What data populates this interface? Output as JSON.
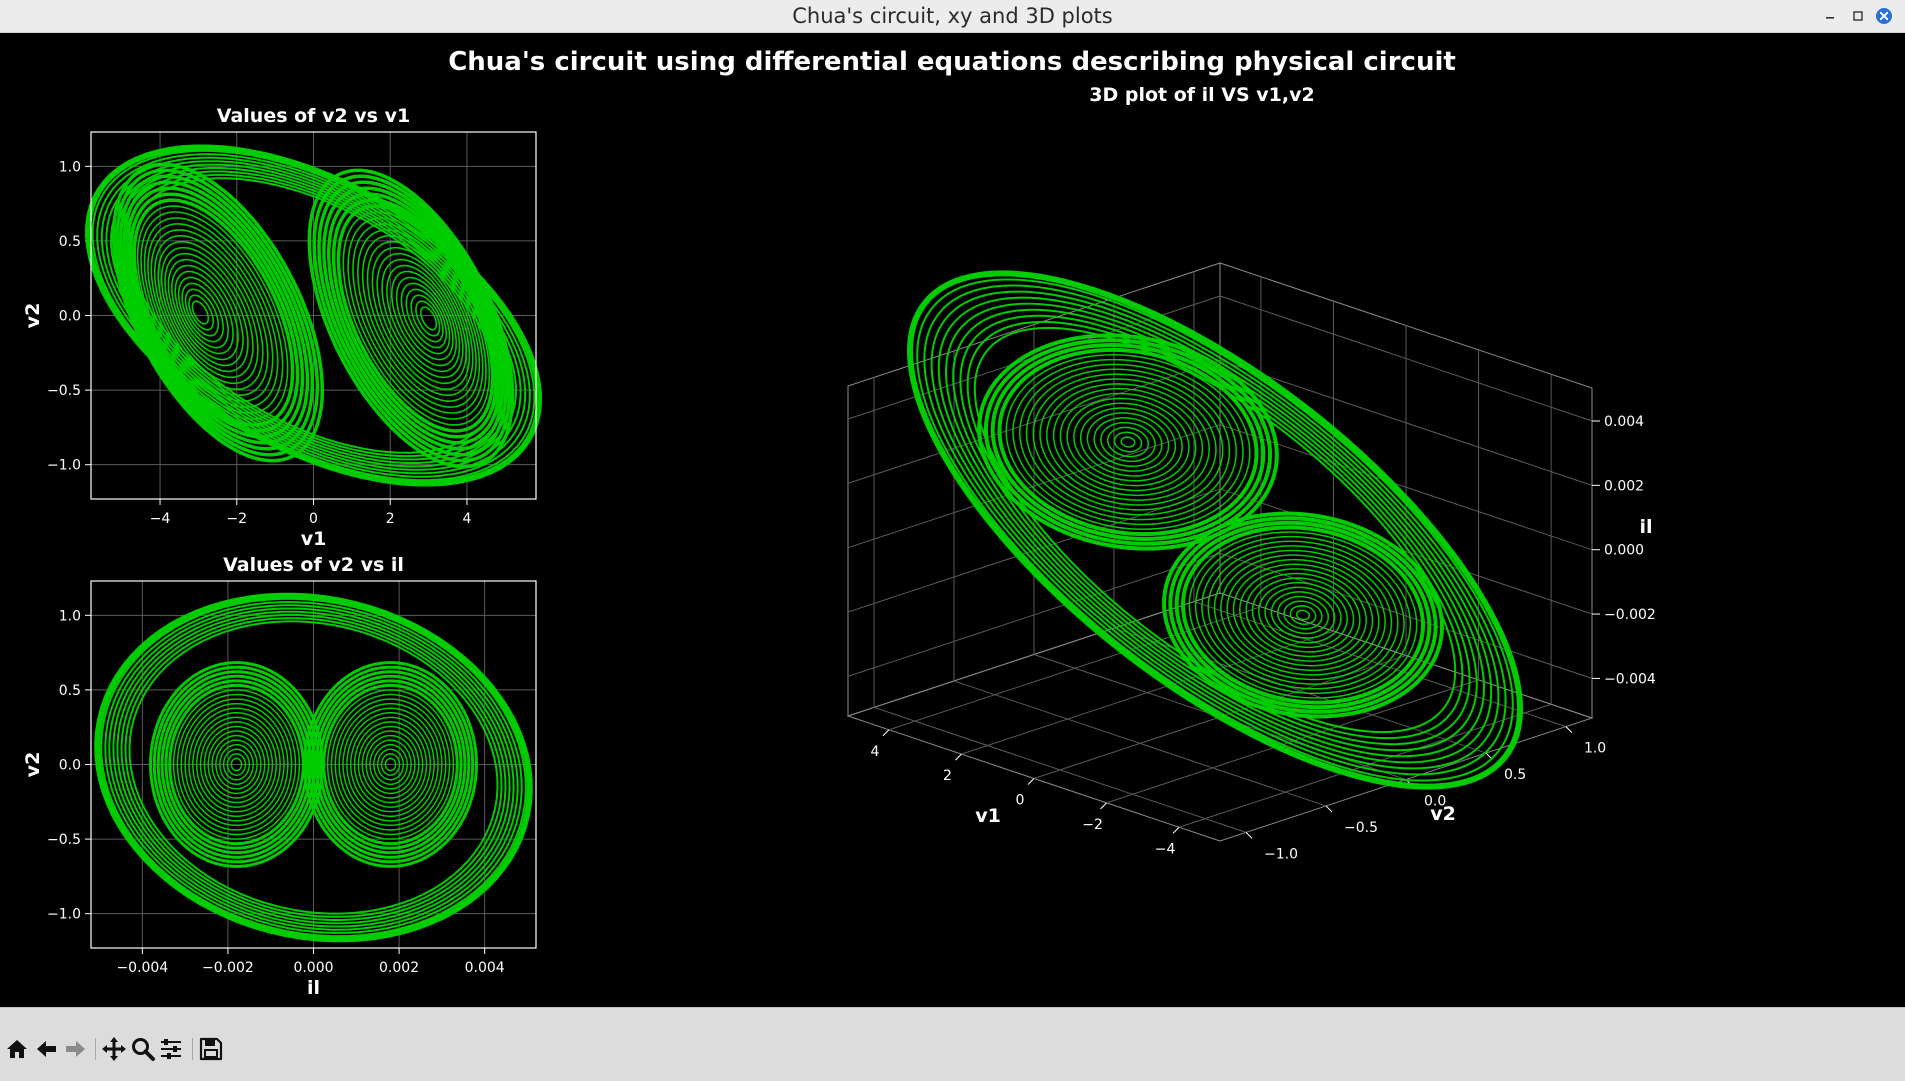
{
  "window": {
    "title": "Chua's circuit, xy and 3D plots",
    "controls": [
      "minimize-icon",
      "maximize-icon",
      "close-icon"
    ]
  },
  "figure": {
    "suptitle": "Chua's circuit using differential equations describing physical circuit",
    "background": "#000000",
    "line_color": "#00cc00"
  },
  "toolbar": {
    "buttons": [
      "home-icon",
      "back-arrow-icon",
      "forward-arrow-icon",
      "pan-icon",
      "zoom-icon",
      "configure-subplots-icon",
      "save-icon"
    ]
  },
  "chart_data": [
    {
      "type": "line",
      "title": "Values of v2 vs v1",
      "xlabel": "v1",
      "ylabel": "v2",
      "xlim": [
        -5.8,
        5.8
      ],
      "ylim": [
        -1.23,
        1.23
      ],
      "xticks": [
        "−4",
        "−2",
        "0",
        "2",
        "4"
      ],
      "yticks": [
        "−1.0",
        "−0.5",
        "0.0",
        "0.5",
        "1.0"
      ],
      "grid": true,
      "series": [
        {
          "color": "#00cc00",
          "description": "double-scroll attractor with two spiral centers",
          "scroll_centers": [
            {
              "v1": -3.0,
              "v2": 0.0
            },
            {
              "v1": 3.0,
              "v2": 0.0
            }
          ],
          "v1_range": [
            -5.3,
            5.2
          ],
          "v2_range": [
            -1.1,
            1.1
          ]
        }
      ]
    },
    {
      "type": "line",
      "title": "Values of v2 vs il",
      "xlabel": "il",
      "ylabel": "v2",
      "xlim": [
        -0.0052,
        0.0052
      ],
      "ylim": [
        -1.23,
        1.23
      ],
      "xticks": [
        "−0.004",
        "−0.002",
        "0.000",
        "0.002",
        "0.004"
      ],
      "yticks": [
        "−1.0",
        "−0.5",
        "0.0",
        "0.5",
        "1.0"
      ],
      "grid": true,
      "series": [
        {
          "color": "#00cc00",
          "scroll_centers": [
            {
              "il": -0.0018,
              "v2": 0.0
            },
            {
              "il": 0.0018,
              "v2": 0.0
            }
          ],
          "il_range": [
            -0.0047,
            0.0047
          ],
          "v2_range": [
            -1.1,
            1.1
          ]
        }
      ]
    },
    {
      "type": "line3d",
      "title": "3D plot of il VS v1,v2",
      "xlabel": "v1",
      "ylabel": "v2",
      "zlabel": "il",
      "xticks": [
        "−4",
        "−2",
        "0",
        "2",
        "4"
      ],
      "yticks": [
        "−1.0",
        "−0.5",
        "0.0",
        "0.5",
        "1.0"
      ],
      "zticks": [
        "−0.004",
        "−0.002",
        "0.000",
        "0.002",
        "0.004"
      ],
      "grid": true,
      "series": [
        {
          "color": "#00cc00",
          "scroll_centers": [
            {
              "v1": -3.0,
              "v2": 0.0,
              "il": 0.002
            },
            {
              "v1": 3.0,
              "v2": 0.0,
              "il": -0.002
            }
          ]
        }
      ]
    }
  ]
}
